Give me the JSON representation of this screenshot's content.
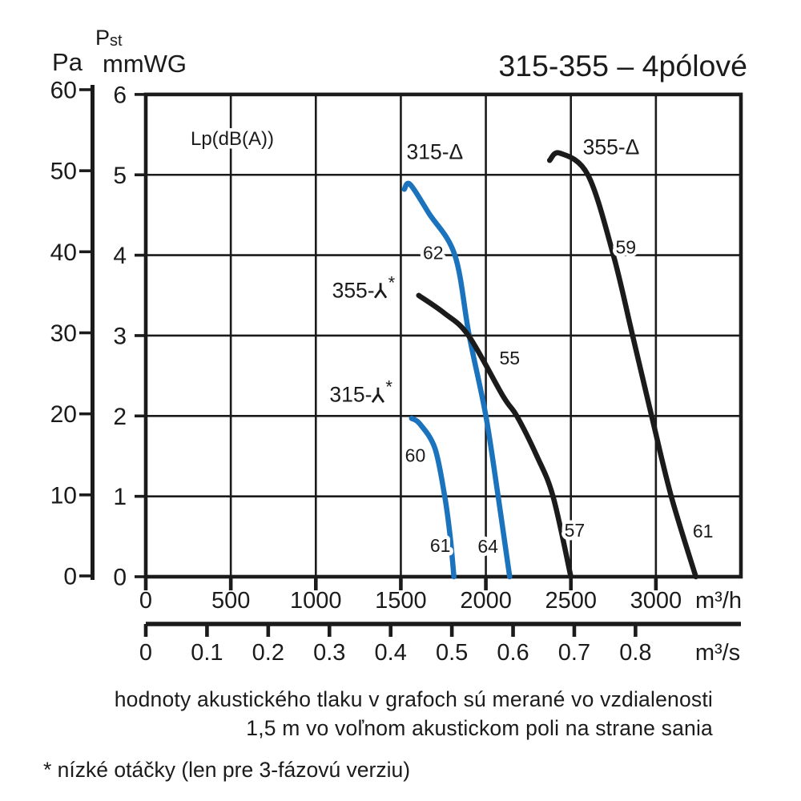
{
  "chart_data": {
    "type": "line",
    "title": "315-355 – 4pólové",
    "sound_level_heading": "Lp(dB(A))",
    "grid": true,
    "y_axis_pa": {
      "label": "Pa",
      "ticks": [
        "0",
        "10",
        "20",
        "30",
        "40",
        "50",
        "60"
      ],
      "tick_values": [
        0,
        10,
        20,
        30,
        40,
        50,
        60
      ],
      "range": [
        0,
        60
      ]
    },
    "y_axis_pst": {
      "quantity": "Pst",
      "quantity_main": "P",
      "quantity_sub": "st",
      "unit": "mmWG",
      "ticks": [
        "0",
        "1",
        "2",
        "3",
        "4",
        "5",
        "6"
      ],
      "tick_values": [
        0,
        1,
        2,
        3,
        4,
        5,
        6
      ],
      "range": [
        0,
        6
      ]
    },
    "x_axis_m3h": {
      "unit": "m³/h",
      "ticks": [
        "0",
        "500",
        "1000",
        "1500",
        "2000",
        "2500",
        "3000"
      ],
      "tick_values": [
        0,
        500,
        1000,
        1500,
        2000,
        2500,
        3000
      ],
      "range": [
        0,
        3500
      ]
    },
    "x_axis_m3s": {
      "unit": "m³/s",
      "ticks": [
        "0",
        "0.1",
        "0.2",
        "0.3",
        "0.4",
        "0.5",
        "0.6",
        "0.7",
        "0.8"
      ],
      "tick_values": [
        0,
        0.1,
        0.2,
        0.3,
        0.4,
        0.5,
        0.6,
        0.7,
        0.8
      ],
      "range": [
        0,
        0.972
      ]
    },
    "series": [
      {
        "id": "315-delta",
        "label": "315-Δ",
        "color": "#1a73bc",
        "label_pos": [
          1700,
          5.29
        ],
        "points": [
          [
            1520,
            4.82
          ],
          [
            1555,
            4.88
          ],
          [
            1665,
            4.52
          ],
          [
            1818,
            4.0
          ],
          [
            1902,
            3.0
          ],
          [
            2000,
            2.0
          ],
          [
            2072,
            1.0
          ],
          [
            2140,
            0
          ]
        ],
        "db_labels": [
          {
            "text": "62",
            "flow": 1690,
            "pressure": 4.03
          },
          {
            "text": "64",
            "flow": 2012,
            "pressure": 0.38
          }
        ]
      },
      {
        "id": "315-star-low-speed",
        "label": "315-⅄*",
        "color": "#1a73bc",
        "label_pos": [
          1262,
          2.27
        ],
        "points": [
          [
            1563,
            1.97
          ],
          [
            1612,
            1.9
          ],
          [
            1700,
            1.6
          ],
          [
            1758,
            1.0
          ],
          [
            1790,
            0.5
          ],
          [
            1812,
            0
          ]
        ],
        "db_labels": [
          {
            "text": "60",
            "flow": 1585,
            "pressure": 1.51
          },
          {
            "text": "61",
            "flow": 1732,
            "pressure": 0.39
          }
        ]
      },
      {
        "id": "355-delta",
        "label": "355-Δ",
        "color": "#1b1b1b",
        "label_pos": [
          2737,
          5.35
        ],
        "points": [
          [
            2375,
            5.18
          ],
          [
            2435,
            5.27
          ],
          [
            2600,
            5.0
          ],
          [
            2750,
            4.0
          ],
          [
            2863,
            3.0
          ],
          [
            2975,
            2.0
          ],
          [
            3090,
            1.0
          ],
          [
            3235,
            0
          ]
        ],
        "db_labels": [
          {
            "text": "59",
            "flow": 2823,
            "pressure": 4.1
          },
          {
            "text": "61",
            "flow": 3277,
            "pressure": 0.57
          }
        ]
      },
      {
        "id": "355-star-low-speed",
        "label": "355-⅄*",
        "color": "#1b1b1b",
        "label_pos": [
          1277,
          3.57
        ],
        "points": [
          [
            1605,
            3.5
          ],
          [
            1755,
            3.28
          ],
          [
            1898,
            3.0
          ],
          [
            2100,
            2.25
          ],
          [
            2182,
            2.0
          ],
          [
            2300,
            1.5
          ],
          [
            2395,
            1.0
          ],
          [
            2500,
            0
          ]
        ],
        "db_labels": [
          {
            "text": "55",
            "flow": 2140,
            "pressure": 2.72
          },
          {
            "text": "57",
            "flow": 2522,
            "pressure": 0.58
          }
        ]
      }
    ]
  },
  "colors": {
    "curve_blue": "#1a73bc",
    "curve_black": "#1b1b1b",
    "pst_label_blue": "#4a5da9"
  },
  "footer": {
    "note_line1": "hodnoty akustického tlaku v grafoch sú merané vo vzdialenosti",
    "note_line2": "1,5 m vo voľnom akustickom poli na strane sania",
    "footnote": "* nízké otáčky (len pre 3-fázovú verziu)"
  }
}
